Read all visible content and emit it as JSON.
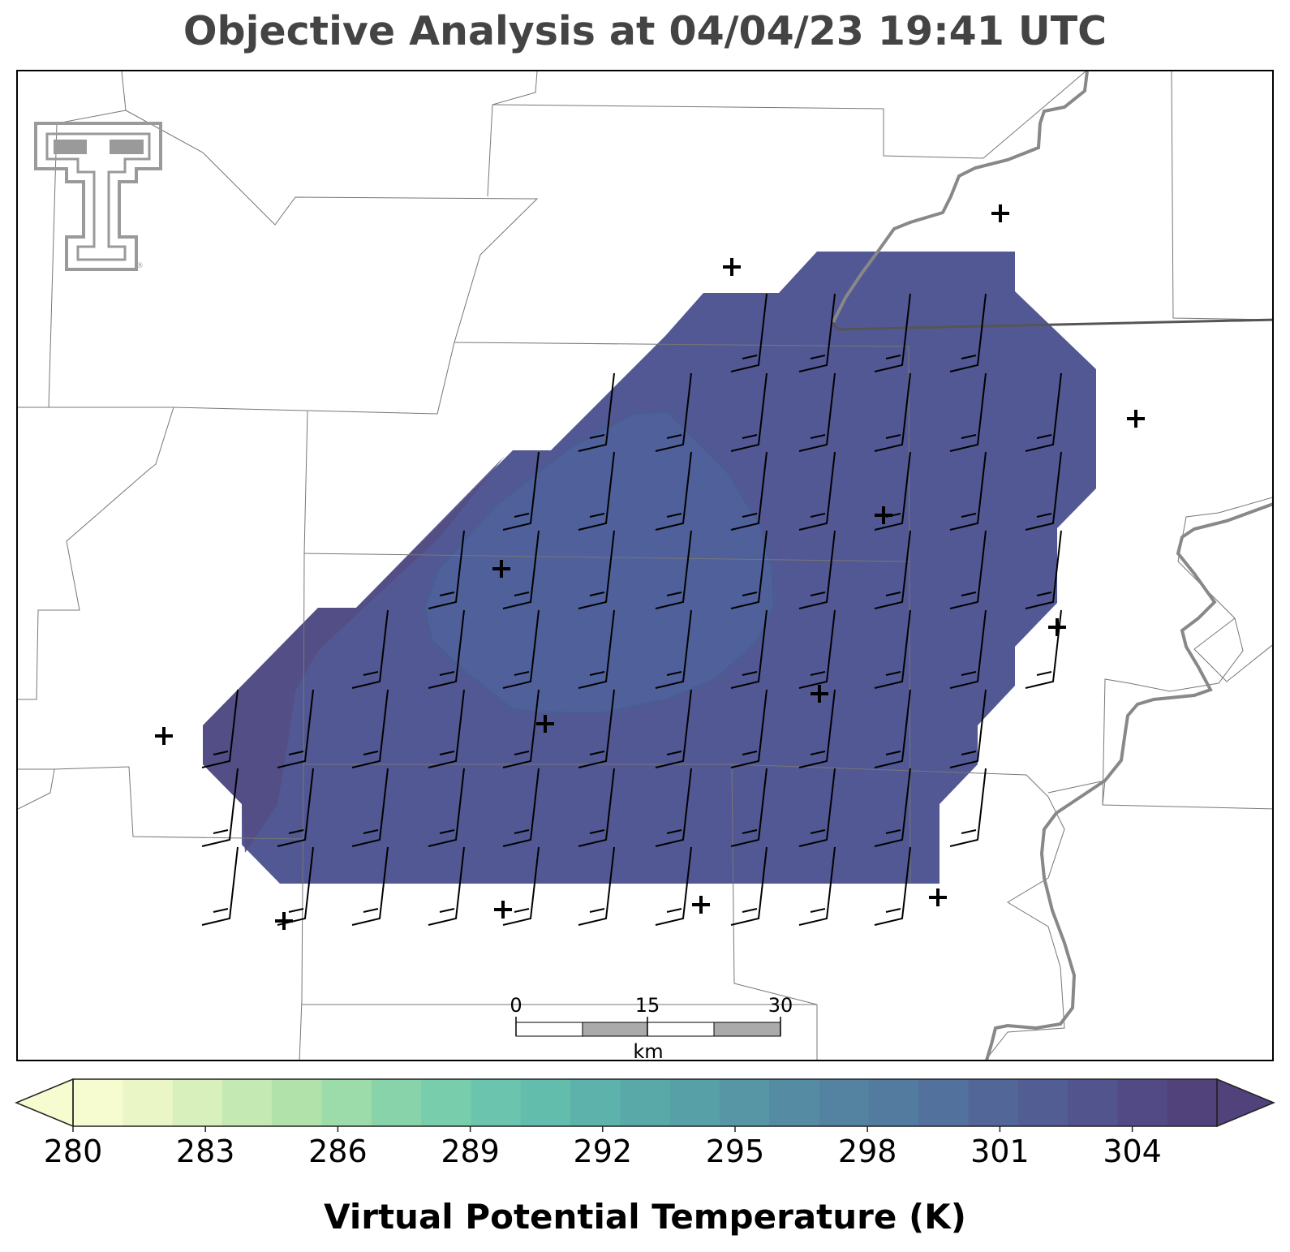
{
  "title": "Objective Analysis at 04/04/23 19:41 UTC",
  "colorbar": {
    "label": "Virtual Potential Temperature (K)",
    "ticks": [
      "280",
      "283",
      "286",
      "289",
      "292",
      "295",
      "298",
      "301",
      "304"
    ],
    "colors": [
      "#f7fbd0",
      "#eaf6c6",
      "#d8f0bc",
      "#c4e9b2",
      "#b0e2aa",
      "#9cdbaa",
      "#88d3aa",
      "#77cdac",
      "#6bc5ae",
      "#62bdad",
      "#5db3ac",
      "#5aa9a9",
      "#58a0a7",
      "#5796a5",
      "#558ca3",
      "#5482a1",
      "#537a9f",
      "#52719c",
      "#526798",
      "#525e93",
      "#52548d",
      "#524a85",
      "#51427c"
    ],
    "min": 280,
    "max": 306
  },
  "scale_bar": {
    "ticks": [
      "0",
      "15",
      "30"
    ],
    "unit": "km"
  },
  "logo": {
    "name": "Texas Tech Double T"
  },
  "map": {
    "field_color": "#525893",
    "inner_contour_color": "#50609a",
    "station_marker": "+",
    "wind_barb_count": 84
  }
}
